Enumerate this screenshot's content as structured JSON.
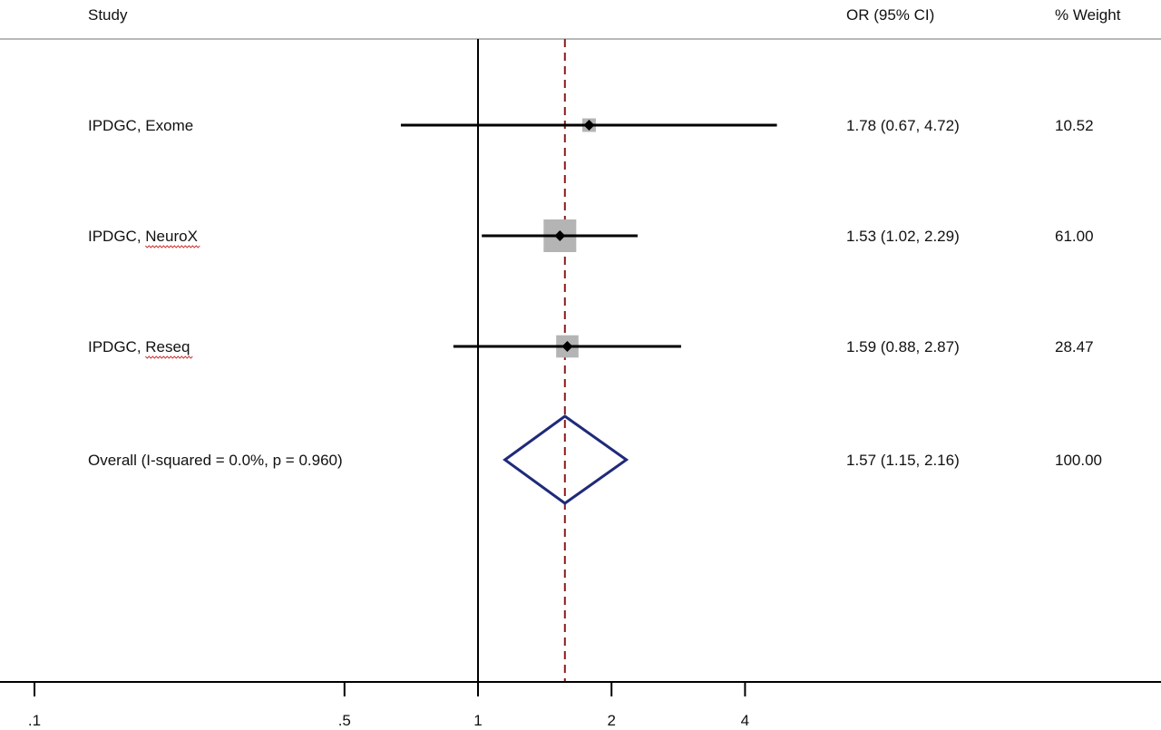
{
  "chart_data": {
    "type": "forest",
    "title": "",
    "columns": {
      "study": "Study",
      "effect": "OR (95% CI)",
      "weight": "% Weight"
    },
    "x_scale": "log",
    "x_ticks": [
      {
        "value": 0.1,
        "label": ".1"
      },
      {
        "value": 0.5,
        "label": ".5"
      },
      {
        "value": 1,
        "label": "1"
      },
      {
        "value": 2,
        "label": "2"
      },
      {
        "value": 4,
        "label": "4"
      }
    ],
    "null_line": 1,
    "pooled_line": 1.57,
    "studies": [
      {
        "label": "IPDGC, Exome",
        "or": 1.78,
        "lo": 0.67,
        "hi": 4.72,
        "or_text": "1.78 (0.67, 4.72)",
        "weight": 10.52,
        "weight_text": "10.52"
      },
      {
        "label": "IPDGC, NeuroX",
        "or": 1.53,
        "lo": 1.02,
        "hi": 2.29,
        "or_text": "1.53 (1.02, 2.29)",
        "weight": 61.0,
        "weight_text": "61.00"
      },
      {
        "label": "IPDGC, Reseq",
        "or": 1.59,
        "lo": 0.88,
        "hi": 2.87,
        "or_text": "1.59 (0.88, 2.87)",
        "weight": 28.47,
        "weight_text": "28.47"
      }
    ],
    "overall": {
      "label": "Overall  (I-squared = 0.0%, p = 0.960)",
      "or": 1.57,
      "lo": 1.15,
      "hi": 2.16,
      "or_text": "1.57 (1.15, 2.16)",
      "weight_text": "100.00"
    },
    "colors": {
      "square": "#b4b4b4",
      "diamond": "#1f2a7a",
      "pooled_line": "#8b1a1a",
      "lines": "#000000"
    }
  }
}
